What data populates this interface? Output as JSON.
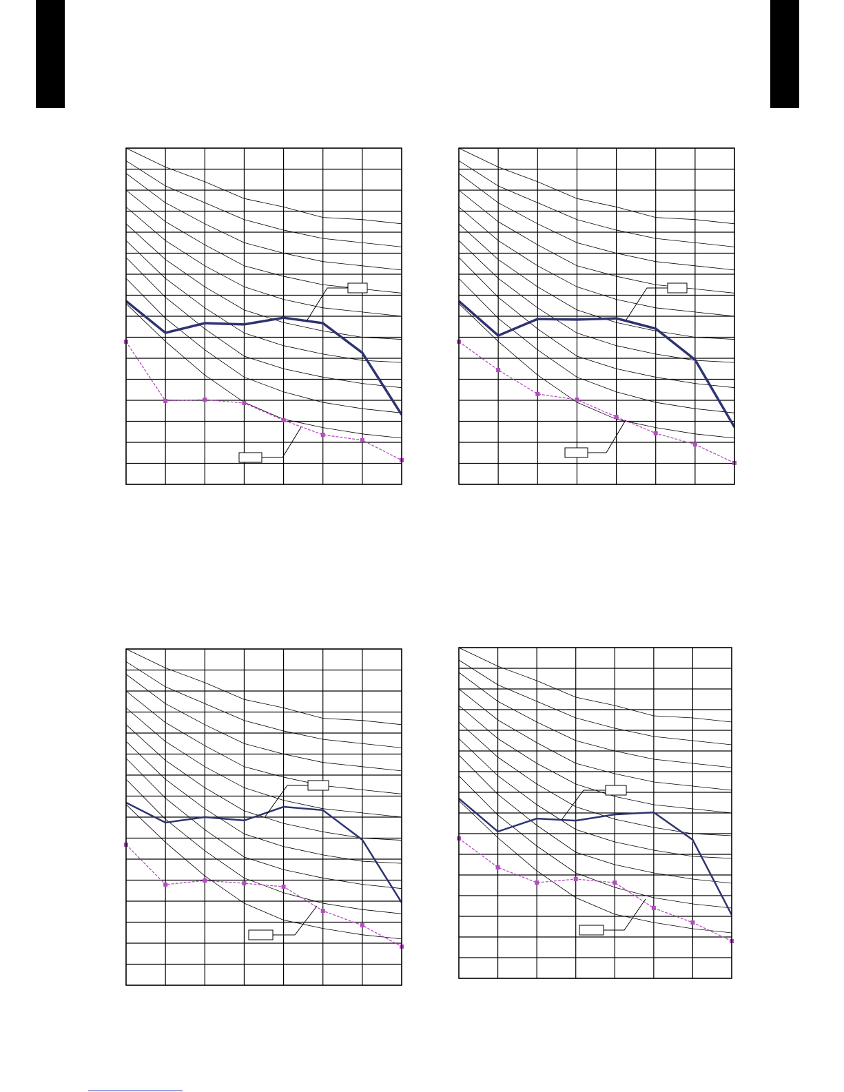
{
  "chart_data": [
    {
      "type": "line",
      "x": [
        0,
        1,
        2,
        3,
        4,
        5,
        6,
        7
      ],
      "xlim": [
        0,
        7
      ],
      "ylim": [
        0,
        16
      ],
      "xticks": [
        0,
        1,
        2,
        3,
        4,
        5,
        6,
        7
      ],
      "yticks": [
        0,
        1,
        2,
        3,
        4,
        5,
        6,
        7,
        8,
        9,
        10,
        11,
        12,
        13,
        14,
        15,
        16
      ],
      "grid": true,
      "series": [
        {
          "color": "#000000",
          "values": [
            16,
            15.1,
            14.4,
            13.6,
            13.2,
            12.7,
            12.6,
            12.4
          ]
        },
        {
          "color": "#000000",
          "values": [
            15.4,
            14.2,
            13.4,
            12.6,
            12.1,
            11.7,
            11.5,
            11.3
          ]
        },
        {
          "color": "#000000",
          "values": [
            14.8,
            13.4,
            12.4,
            11.5,
            11.0,
            10.6,
            10.4,
            10.2
          ]
        },
        {
          "color": "#000000",
          "values": [
            14.0,
            12.5,
            11.4,
            10.4,
            9.9,
            9.5,
            9.3,
            9.1
          ]
        },
        {
          "color": "#000000",
          "values": [
            13.2,
            11.6,
            10.4,
            9.4,
            8.8,
            8.4,
            8.2,
            8.0
          ]
        },
        {
          "color": "#000000",
          "values": [
            12.4,
            10.7,
            9.4,
            8.3,
            7.7,
            7.3,
            7.0,
            6.9
          ]
        },
        {
          "color": "#000000",
          "values": [
            11.6,
            9.8,
            8.4,
            7.2,
            6.6,
            6.2,
            5.9,
            5.8
          ]
        },
        {
          "color": "#000000",
          "values": [
            10.8,
            8.9,
            7.4,
            6.1,
            5.5,
            5.1,
            4.8,
            4.6
          ]
        },
        {
          "color": "#000000",
          "values": [
            9.8,
            7.9,
            6.4,
            5.1,
            4.4,
            3.9,
            3.6,
            3.4
          ]
        },
        {
          "color": "#000000",
          "values": [
            8.6,
            6.8,
            5.2,
            3.9,
            3.1,
            2.7,
            2.4,
            2.2
          ]
        },
        {
          "color": "#2e3370",
          "width": 3.5,
          "values": [
            8.72,
            7.21,
            7.67,
            7.61,
            7.93,
            7.67,
            6.26,
            3.31
          ]
        },
        {
          "color": "#b44cc0",
          "dashed": true,
          "marker": "square",
          "values": [
            6.79,
            3.97,
            4.03,
            3.87,
            3.05,
            2.36,
            2.1,
            1.15
          ]
        }
      ]
    },
    {
      "type": "line",
      "x": [
        0,
        1,
        2,
        3,
        4,
        5,
        6,
        7
      ],
      "xlim": [
        0,
        7
      ],
      "ylim": [
        0,
        16
      ],
      "xticks": [
        0,
        1,
        2,
        3,
        4,
        5,
        6,
        7
      ],
      "yticks": [
        0,
        1,
        2,
        3,
        4,
        5,
        6,
        7,
        8,
        9,
        10,
        11,
        12,
        13,
        14,
        15,
        16
      ],
      "grid": true,
      "series": [
        {
          "color": "#000000",
          "values": [
            16,
            15.1,
            14.4,
            13.6,
            13.2,
            12.7,
            12.6,
            12.4
          ]
        },
        {
          "color": "#000000",
          "values": [
            15.4,
            14.2,
            13.4,
            12.6,
            12.1,
            11.7,
            11.5,
            11.3
          ]
        },
        {
          "color": "#000000",
          "values": [
            14.8,
            13.4,
            12.4,
            11.5,
            11.0,
            10.6,
            10.4,
            10.2
          ]
        },
        {
          "color": "#000000",
          "values": [
            14.0,
            12.5,
            11.4,
            10.4,
            9.9,
            9.5,
            9.3,
            9.1
          ]
        },
        {
          "color": "#000000",
          "values": [
            13.2,
            11.6,
            10.4,
            9.4,
            8.8,
            8.4,
            8.2,
            8.0
          ]
        },
        {
          "color": "#000000",
          "values": [
            12.4,
            10.7,
            9.4,
            8.3,
            7.7,
            7.3,
            7.0,
            6.9
          ]
        },
        {
          "color": "#000000",
          "values": [
            11.6,
            9.8,
            8.4,
            7.2,
            6.6,
            6.2,
            5.9,
            5.8
          ]
        },
        {
          "color": "#000000",
          "values": [
            10.8,
            8.9,
            7.4,
            6.1,
            5.5,
            5.1,
            4.8,
            4.6
          ]
        },
        {
          "color": "#000000",
          "values": [
            9.8,
            7.9,
            6.4,
            5.1,
            4.4,
            3.9,
            3.6,
            3.4
          ]
        },
        {
          "color": "#000000",
          "values": [
            8.6,
            6.8,
            5.2,
            3.9,
            3.1,
            2.7,
            2.4,
            2.2
          ]
        },
        {
          "color": "#2e3370",
          "width": 3.5,
          "values": [
            8.72,
            7.08,
            7.87,
            7.84,
            7.9,
            7.41,
            5.93,
            2.72
          ]
        },
        {
          "color": "#b44cc0",
          "dashed": true,
          "marker": "square",
          "values": [
            6.79,
            5.44,
            4.3,
            4.03,
            3.21,
            2.43,
            1.9,
            1.02
          ]
        }
      ]
    },
    {
      "type": "line",
      "x": [
        0,
        1,
        2,
        3,
        4,
        5,
        6,
        7
      ],
      "xlim": [
        0,
        7
      ],
      "ylim": [
        0,
        16
      ],
      "xticks": [
        0,
        1,
        2,
        3,
        4,
        5,
        6,
        7
      ],
      "yticks": [
        0,
        1,
        2,
        3,
        4,
        5,
        6,
        7,
        8,
        9,
        10,
        11,
        12,
        13,
        14,
        15,
        16
      ],
      "grid": true,
      "series": [
        {
          "color": "#000000",
          "values": [
            16,
            15.1,
            14.4,
            13.6,
            13.2,
            12.7,
            12.6,
            12.4
          ]
        },
        {
          "color": "#000000",
          "values": [
            15.4,
            14.2,
            13.4,
            12.6,
            12.1,
            11.7,
            11.5,
            11.3
          ]
        },
        {
          "color": "#000000",
          "values": [
            14.8,
            13.4,
            12.4,
            11.5,
            11.0,
            10.6,
            10.4,
            10.2
          ]
        },
        {
          "color": "#000000",
          "values": [
            14.0,
            12.5,
            11.4,
            10.4,
            9.9,
            9.5,
            9.3,
            9.1
          ]
        },
        {
          "color": "#000000",
          "values": [
            13.2,
            11.6,
            10.4,
            9.4,
            8.8,
            8.4,
            8.2,
            8.0
          ]
        },
        {
          "color": "#000000",
          "values": [
            12.4,
            10.7,
            9.4,
            8.3,
            7.7,
            7.3,
            7.0,
            6.9
          ]
        },
        {
          "color": "#000000",
          "values": [
            11.6,
            9.8,
            8.4,
            7.2,
            6.6,
            6.2,
            5.9,
            5.8
          ]
        },
        {
          "color": "#000000",
          "values": [
            10.8,
            8.9,
            7.4,
            6.1,
            5.5,
            5.1,
            4.8,
            4.6
          ]
        },
        {
          "color": "#000000",
          "values": [
            9.8,
            7.9,
            6.4,
            5.1,
            4.4,
            3.9,
            3.6,
            3.4
          ]
        },
        {
          "color": "#000000",
          "values": [
            8.6,
            6.8,
            5.2,
            3.9,
            3.1,
            2.7,
            2.4,
            2.2
          ]
        },
        {
          "color": "#2e3370",
          "width": 2.5,
          "values": [
            8.69,
            7.74,
            8.0,
            7.84,
            8.49,
            8.33,
            6.92,
            3.93
          ]
        },
        {
          "color": "#b44cc0",
          "dashed": true,
          "marker": "square",
          "values": [
            6.69,
            4.79,
            4.98,
            4.85,
            4.69,
            3.54,
            2.85,
            1.84
          ]
        }
      ]
    },
    {
      "type": "line",
      "x": [
        0,
        1,
        2,
        3,
        4,
        5,
        6,
        7
      ],
      "xlim": [
        0,
        7
      ],
      "ylim": [
        0,
        16
      ],
      "xticks": [
        0,
        1,
        2,
        3,
        4,
        5,
        6,
        7
      ],
      "yticks": [
        0,
        1,
        2,
        3,
        4,
        5,
        6,
        7,
        8,
        9,
        10,
        11,
        12,
        13,
        14,
        15,
        16
      ],
      "grid": true,
      "series": [
        {
          "color": "#000000",
          "values": [
            16,
            15.1,
            14.4,
            13.6,
            13.2,
            12.7,
            12.6,
            12.4
          ]
        },
        {
          "color": "#000000",
          "values": [
            15.4,
            14.2,
            13.4,
            12.6,
            12.1,
            11.7,
            11.5,
            11.3
          ]
        },
        {
          "color": "#000000",
          "values": [
            14.8,
            13.4,
            12.4,
            11.5,
            11.0,
            10.6,
            10.4,
            10.2
          ]
        },
        {
          "color": "#000000",
          "values": [
            14.0,
            12.5,
            11.4,
            10.4,
            9.9,
            9.5,
            9.3,
            9.1
          ]
        },
        {
          "color": "#000000",
          "values": [
            13.2,
            11.6,
            10.4,
            9.4,
            8.8,
            8.4,
            8.2,
            8.0
          ]
        },
        {
          "color": "#000000",
          "values": [
            12.4,
            10.7,
            9.4,
            8.3,
            7.7,
            7.3,
            7.0,
            6.9
          ]
        },
        {
          "color": "#000000",
          "values": [
            11.6,
            9.8,
            8.4,
            7.2,
            6.6,
            6.2,
            5.9,
            5.8
          ]
        },
        {
          "color": "#000000",
          "values": [
            10.8,
            8.9,
            7.4,
            6.1,
            5.5,
            5.1,
            4.8,
            4.6
          ]
        },
        {
          "color": "#000000",
          "values": [
            9.8,
            7.9,
            6.4,
            5.1,
            4.4,
            3.9,
            3.6,
            3.4
          ]
        },
        {
          "color": "#000000",
          "values": [
            8.6,
            6.8,
            5.2,
            3.9,
            3.1,
            2.7,
            2.4,
            2.2
          ]
        },
        {
          "color": "#2e3370",
          "width": 2.5,
          "values": [
            8.7,
            7.1,
            7.73,
            7.63,
            7.93,
            8.03,
            6.7,
            3.07
          ]
        },
        {
          "color": "#b44cc0",
          "dashed": true,
          "marker": "square",
          "values": [
            6.77,
            5.37,
            4.63,
            4.8,
            4.63,
            3.4,
            2.7,
            1.8
          ]
        }
      ]
    }
  ]
}
